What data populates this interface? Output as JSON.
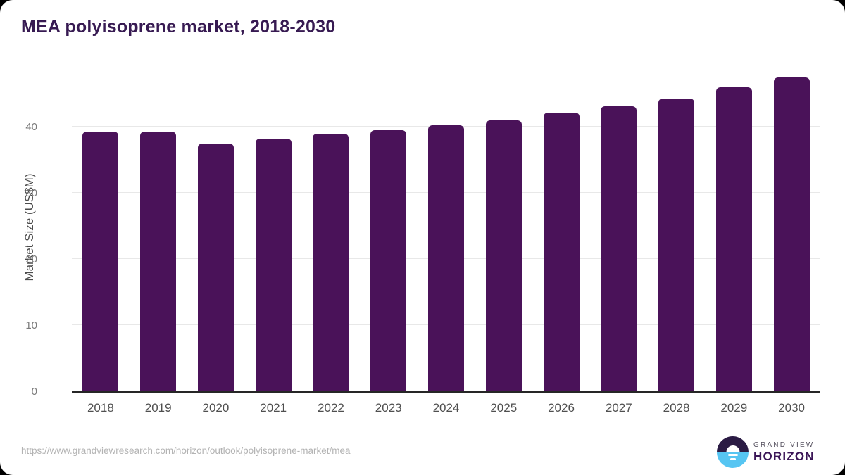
{
  "header": {
    "title": "MEA polyisoprene market, 2018-2030"
  },
  "chart_data": {
    "type": "bar",
    "categories": [
      "2018",
      "2019",
      "2020",
      "2021",
      "2022",
      "2023",
      "2024",
      "2025",
      "2026",
      "2027",
      "2028",
      "2029",
      "2030"
    ],
    "values": [
      39.3,
      39.3,
      37.5,
      38.2,
      38.9,
      39.5,
      40.2,
      41.0,
      42.1,
      43.1,
      44.3,
      46.0,
      47.5
    ],
    "title": "MEA polyisoprene market, 2018-2030",
    "xlabel": "",
    "ylabel": "Market Size (US$M)",
    "ylim": [
      0,
      50
    ],
    "yticks": [
      0,
      10,
      20,
      30,
      40
    ],
    "grid": "horizontal",
    "legend": "none",
    "bar_color": "#4a1259"
  },
  "footer": {
    "source_url": "https://www.grandviewresearch.com/horizon/outlook/polyisoprene-market/mea",
    "logo": {
      "icon": "sunrise-over-water-icon",
      "brand_top": "GRAND VIEW",
      "brand_bottom": "HORIZON",
      "colors": {
        "dark": "#2b1b44",
        "blue": "#56c5f2",
        "wordmark": "#3b1657"
      }
    }
  },
  "colors": {
    "background": "#ffffff",
    "page_behind": "#000000",
    "title": "#371a52",
    "bar": "#4a1259",
    "gridline": "#e8e8e8",
    "axis_line": "#262626",
    "y_tick_label": "#7b7b7b",
    "x_tick_label": "#4f4f4f",
    "y_axis_title": "#4c4c4c",
    "source_url": "#b3b3b3"
  }
}
